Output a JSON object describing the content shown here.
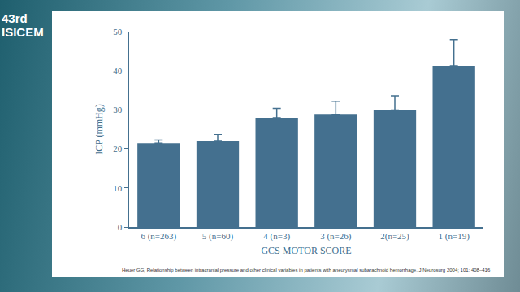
{
  "chart_data": {
    "type": "bar",
    "categories": [
      "6 (n=263)",
      "5 (n=60)",
      "4 (n=3)",
      "3 (n=26)",
      "2(n=25)",
      "1 (n=19)"
    ],
    "values": [
      21.5,
      22,
      28,
      28.8,
      30,
      41.3
    ],
    "errors": [
      0.8,
      1.7,
      2.4,
      3.4,
      3.6,
      6.7
    ],
    "color": "#44708f",
    "x_label": "GCS MOTOR SCORE",
    "y_label": "ICP (mmHg)",
    "ylim": [
      0,
      50
    ],
    "yticks": [
      0,
      10,
      20,
      30,
      40,
      50
    ],
    "grid": false,
    "annotations": [
      "43rd ISICEM",
      "Heuer GG, Relationship between intracranial pressure and other clinical variables in patients with aneurysmal subarachnoid hemorrhage. J Neurosurg 2004; 101: 408–416"
    ]
  }
}
